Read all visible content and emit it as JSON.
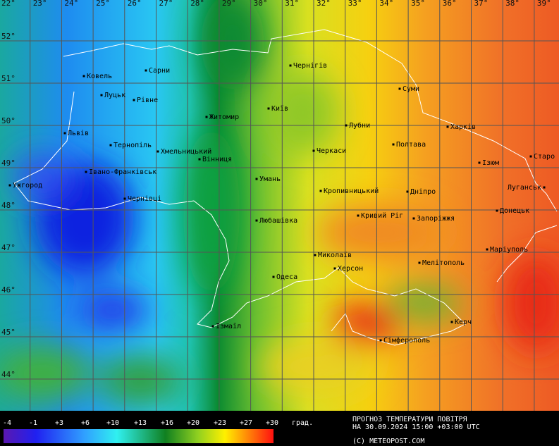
{
  "map": {
    "longitude_labels": [
      "22°",
      "23°",
      "24°",
      "25°",
      "26°",
      "27°",
      "28°",
      "29°",
      "30°",
      "31°",
      "32°",
      "33°",
      "34°",
      "35°",
      "36°",
      "37°",
      "38°",
      "39°"
    ],
    "latitude_labels": [
      "52°",
      "51°",
      "50°",
      "49°",
      "48°",
      "47°",
      "46°",
      "45°",
      "44°"
    ],
    "cities": [
      "Ковель",
      "Сарни",
      "Луцьк",
      "Рівне",
      "Чернігів",
      "Суми",
      "Житомир",
      "Київ",
      "Львів",
      "Лубни",
      "Харків",
      "Тернопіль",
      "Хмельницький",
      "Вінниця",
      "Черкаси",
      "Полтава",
      "Старо",
      "Ізюм",
      "Івано-Франківськ",
      "Ужгород",
      "Умань",
      "Кропивницький",
      "Дніпро",
      "Луганськ",
      "Чернівці",
      "Кривий Ріг",
      "Запоріжжя",
      "Донецьк",
      "Любашівка",
      "Маріуполь",
      "Миколаїв",
      "Херсон",
      "Мелітополь",
      "Одеса",
      "Керч",
      "Ізмаїл",
      "Сімферополь"
    ]
  },
  "legend": {
    "ticks": [
      "-4",
      "-1",
      "+3",
      "+6",
      "+10",
      "+13",
      "+16",
      "+20",
      "+23",
      "+27",
      "+30"
    ],
    "unit": "град."
  },
  "footer": {
    "line1": "ПРОГНОЗ ТЕМПЕРАТУРИ ПОВІТРЯ",
    "line2": "НА 30.09.2024 15:00 +03:00 UTC",
    "copyright": "(C) METEOPOST.COM"
  }
}
